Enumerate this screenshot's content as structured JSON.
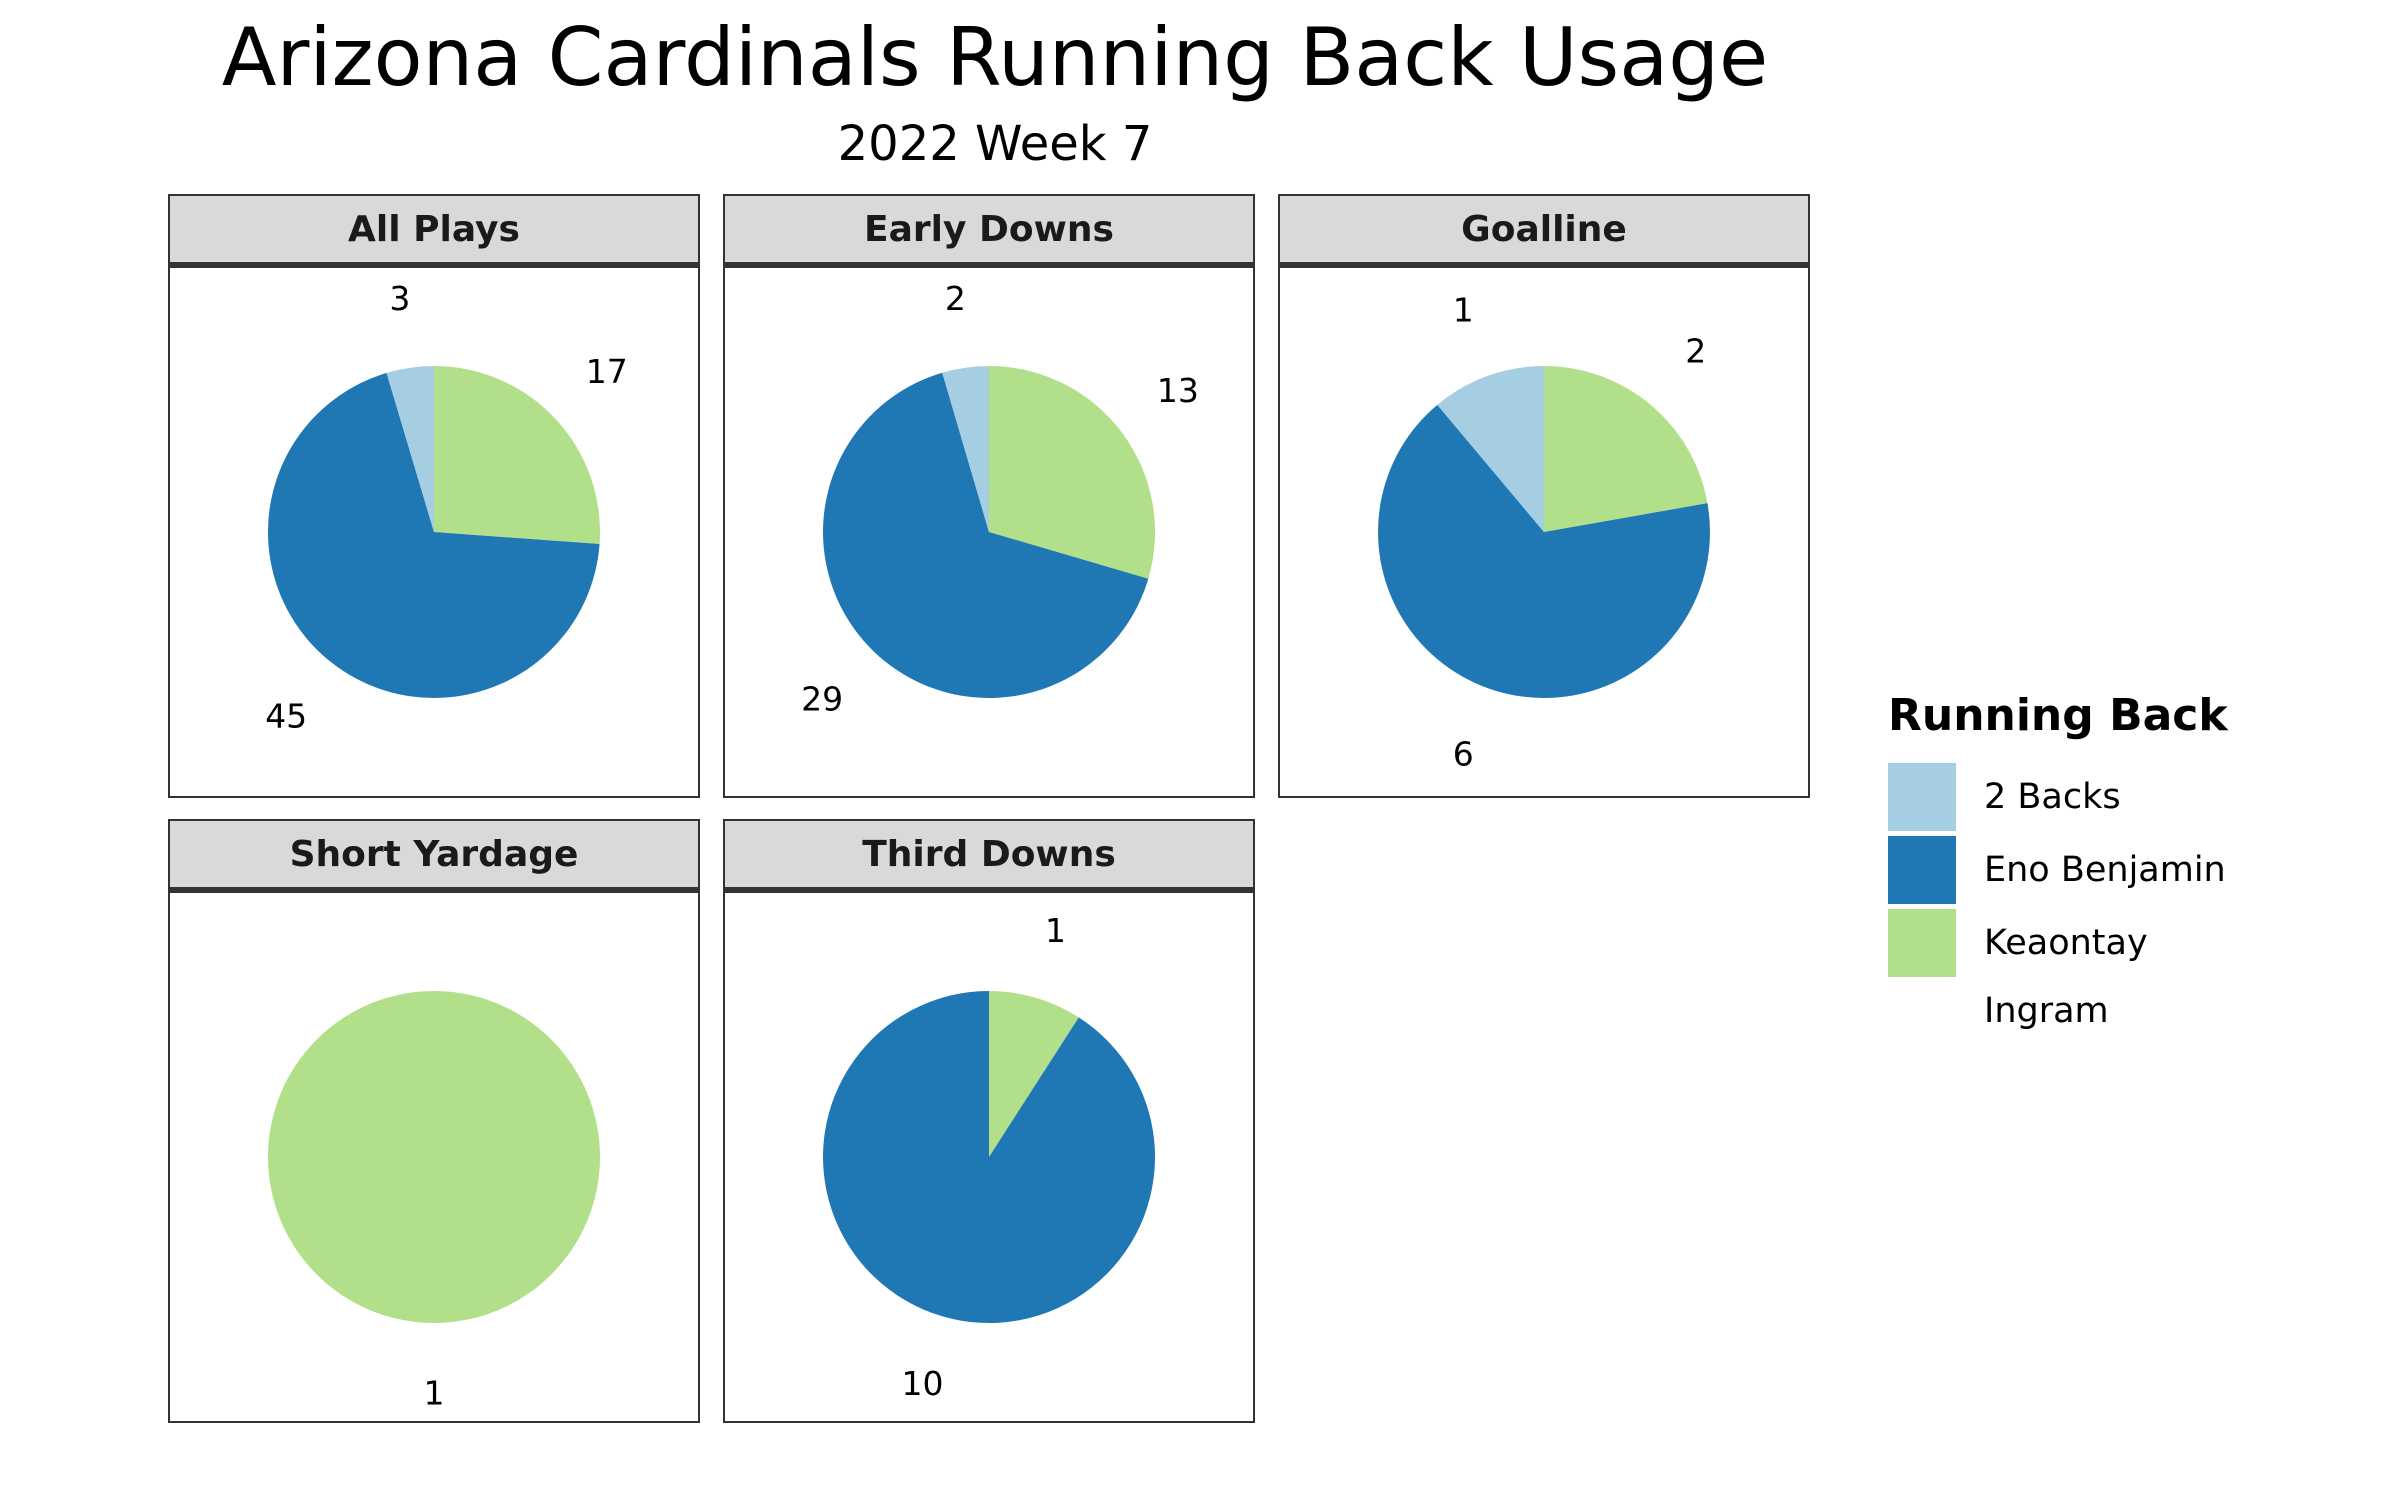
{
  "title": "Arizona Cardinals Running Back Usage",
  "subtitle": "2022 Week 7",
  "colors": {
    "2 Backs": "#a6cee3",
    "Eno Benjamin": "#1f78b4",
    "Keaontay Ingram": "#b2df8a"
  },
  "legend": {
    "title": "Running Back",
    "items": [
      "2 Backs",
      "Eno Benjamin",
      "Keaontay Ingram"
    ]
  },
  "chart_data": {
    "type": "pie",
    "facets": [
      {
        "label": "All Plays",
        "slices": [
          {
            "name": "2 Backs",
            "value": 3
          },
          {
            "name": "Eno Benjamin",
            "value": 45
          },
          {
            "name": "Keaontay Ingram",
            "value": 17
          }
        ]
      },
      {
        "label": "Early Downs",
        "slices": [
          {
            "name": "2 Backs",
            "value": 2
          },
          {
            "name": "Eno Benjamin",
            "value": 29
          },
          {
            "name": "Keaontay Ingram",
            "value": 13
          }
        ]
      },
      {
        "label": "Goalline",
        "slices": [
          {
            "name": "2 Backs",
            "value": 1
          },
          {
            "name": "Eno Benjamin",
            "value": 6
          },
          {
            "name": "Keaontay Ingram",
            "value": 2
          }
        ]
      },
      {
        "label": "Short Yardage",
        "slices": [
          {
            "name": "Keaontay Ingram",
            "value": 1
          }
        ]
      },
      {
        "label": "Third Downs",
        "slices": [
          {
            "name": "Eno Benjamin",
            "value": 10
          },
          {
            "name": "Keaontay Ingram",
            "value": 1
          }
        ]
      }
    ]
  }
}
